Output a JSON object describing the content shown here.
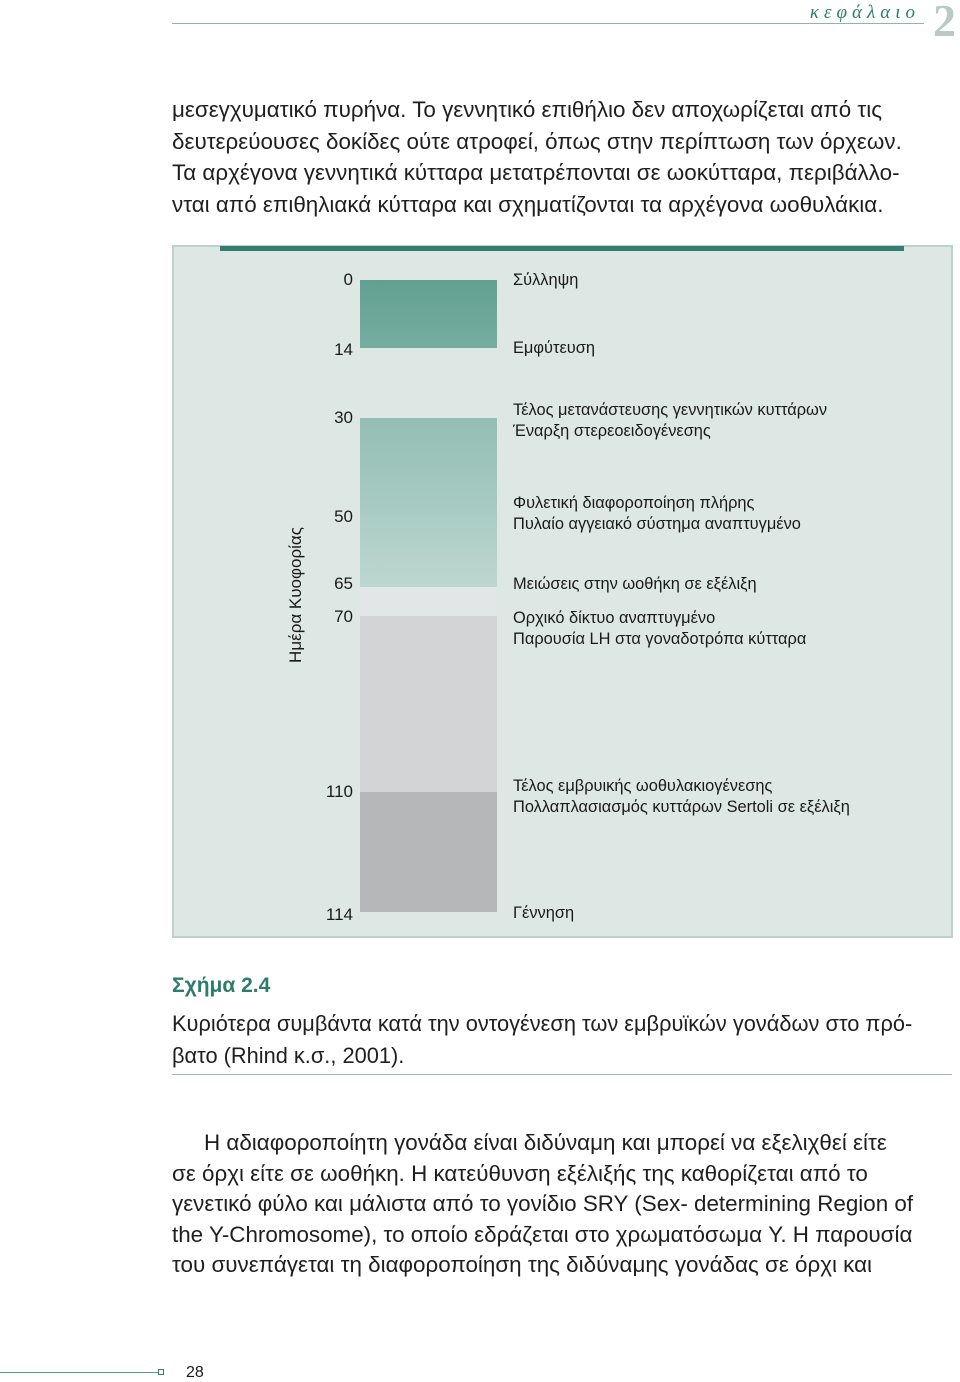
{
  "header": {
    "chapter_word": "κεφάλαιο",
    "chapter_number": "2"
  },
  "intro_lines": [
    "μεσεγχυματικό πυρήνα. Το γεννητικό επιθήλιο δεν αποχωρίζεται από τις",
    "δευτερεύουσες δοκίδες ούτε ατροφεί, όπως στην περίπτωση των όρχεων.",
    "Τα αρχέγονα γεννητικά κύτταρα μετατρέπονται σε ωοκύτταρα, περιβάλλο-",
    "νται από επιθηλιακά κύτταρα και σχηματίζονται τα αρχέγονα ωοθυλάκια."
  ],
  "figure": {
    "axis_label": "Ημέρα Κυοφορίας",
    "timeline": [
      {
        "day": "0",
        "lines": [
          "Σύλληψη"
        ]
      },
      {
        "day": "14",
        "lines": [
          "Εμφύτευση"
        ]
      },
      {
        "day": "30",
        "lines": [
          "Τέλος μετανάστευσης γεννητικών κυττάρων",
          "Έναρξη στερεοειδογένεσης"
        ]
      },
      {
        "day": "50",
        "lines": [
          "Φυλετική διαφοροποίηση πλήρης",
          "Πυλαίο αγγειακό σύστημα αναπτυγμένο"
        ]
      },
      {
        "day": "65",
        "lines": [
          "Μειώσεις στην ωοθήκη σε εξέλιξη"
        ]
      },
      {
        "day": "70",
        "lines": [
          "Ορχικό δίκτυο αναπτυγμένο",
          "Παρουσία LH στα γοναδοτρόπα κύτταρα"
        ]
      },
      {
        "day": "110",
        "lines": [
          "Τέλος εμβρυικής ωοθυλακιογένεσης",
          "Πολλαπλασιασμός κυττάρων Sertoli σε εξέλιξη"
        ]
      },
      {
        "day": "114",
        "lines": [
          "Γέννηση"
        ]
      }
    ],
    "colors": {
      "stage_1": "#6aa597",
      "stage_2": "#86b6aa",
      "stage_3": "#a8ccc3",
      "stage_4": "#bad6cf",
      "stage_5": "#e3e6e6",
      "stage_6": "#d3d4d5",
      "stage_7": "#b5b7b8",
      "frame": "#dde8e5",
      "accent": "#2e7f6c"
    }
  },
  "caption": {
    "title": "Σχήμα 2.4",
    "lines": [
      "Κυριότερα συμβάντα κατά την οντογένεση των εμβρυϊκών γονάδων στο πρό-",
      "βατο (Rhind κ.σ., 2001)."
    ]
  },
  "body_lines": [
    "Η αδιαφοροποίητη γονάδα είναι διδύναμη και μπορεί να εξελιχθεί είτε",
    "σε όρχι είτε σε ωοθήκη. Η κατεύθυνση εξέλιξής της καθορίζεται από το",
    "γενετικό φύλο και μάλιστα από το γονίδιο SRY (Sex- determining Region of",
    "the Y-Chromosome), το οποίο εδράζεται στο χρωματόσωμα Y. Η παρουσία",
    "του συνεπάγεται τη διαφοροποίηση της διδύναμης γονάδας σε όρχι και"
  ],
  "footer": {
    "page_number": "28"
  }
}
